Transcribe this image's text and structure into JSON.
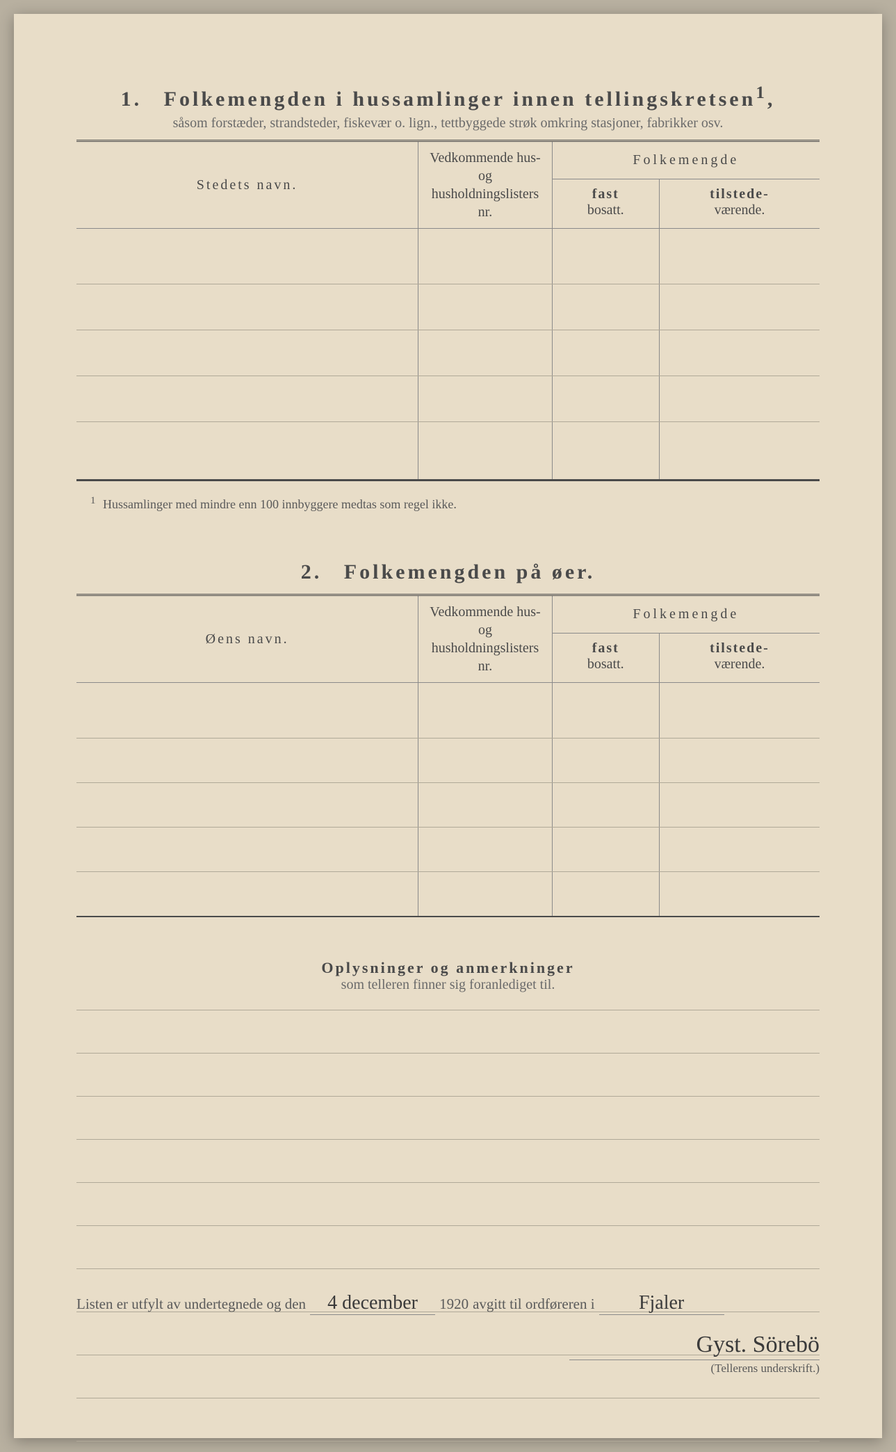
{
  "section1": {
    "number": "1.",
    "title": "Folkemengden i hussamlinger innen tellingskretsen",
    "title_sup": "1",
    "subtitle": "såsom forstæder, strandsteder, fiskevær o. lign., tettbyggede strøk omkring stasjoner, fabrikker osv.",
    "col_name": "Stedets navn.",
    "col_nr_line1": "Vedkommende hus- og",
    "col_nr_line2": "husholdningslisters",
    "col_nr_line3": "nr.",
    "col_folke": "Folkemengde",
    "col_fast_b": "fast",
    "col_fast": "bosatt.",
    "col_til_b": "tilstede-",
    "col_til": "værende.",
    "footnote_sup": "1",
    "footnote": "Hussamlinger med mindre enn 100 innbyggere medtas som regel ikke."
  },
  "section2": {
    "number": "2.",
    "title": "Folkemengden på øer.",
    "col_name": "Øens navn.",
    "col_nr_line1": "Vedkommende hus- og",
    "col_nr_line2": "husholdningslisters",
    "col_nr_line3": "nr.",
    "col_folke": "Folkemengde",
    "col_fast_b": "fast",
    "col_fast": "bosatt.",
    "col_til_b": "tilstede-",
    "col_til": "værende."
  },
  "remarks": {
    "title": "Oplysninger og anmerkninger",
    "subtitle": "som telleren finner sig foranlediget til."
  },
  "footer": {
    "text1": "Listen er utfylt av undertegnede og den",
    "date_handwritten": "4 december",
    "year": "1920",
    "text2": "avgitt til ordføreren i",
    "place_handwritten": "Fjaler",
    "signature": "Gyst. Sörebö",
    "sig_label": "(Tellerens underskrift.)"
  },
  "style": {
    "page_bg": "#e8ddc8",
    "text_color": "#4a4a4a",
    "rule_color": "#8a8a8a",
    "light_rule": "#b0a998"
  }
}
